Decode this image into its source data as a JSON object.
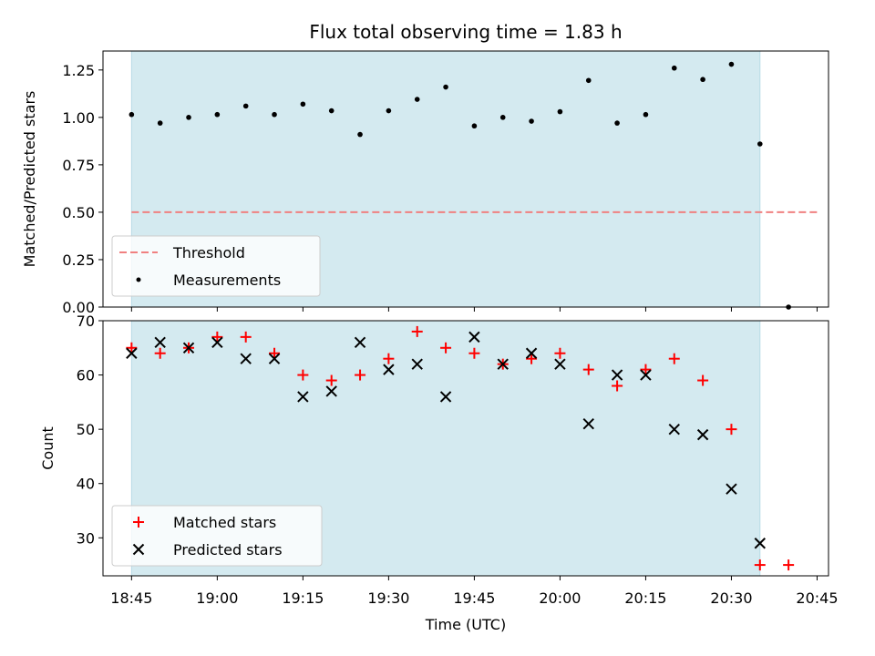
{
  "title": "Flux total observing time = 1.83 h",
  "colors": {
    "span": "#d4eaf0",
    "span_edge": "#b8dbe6",
    "threshold": "#f08080",
    "measurement": "#000000",
    "matched": "#ff0000",
    "predicted": "#000000"
  },
  "chart_data": [
    {
      "type": "scatter",
      "ylabel": "Matched/Predicted stars",
      "ylim": [
        0,
        1.35
      ],
      "xlim": [
        "18:40",
        "20:47"
      ],
      "yticks": [
        0,
        0.25,
        0.5,
        0.75,
        1.0,
        1.25
      ],
      "ytick_labels": [
        "0.00",
        "0.25",
        "0.50",
        "0.75",
        "1.00",
        "1.25"
      ],
      "shaded_span": [
        "18:45",
        "20:35"
      ],
      "threshold": {
        "name": "Threshold",
        "value": 0.5,
        "x_range": [
          "18:45",
          "20:45"
        ],
        "style": "dashed"
      },
      "series": [
        {
          "name": "Measurements",
          "marker": "dot",
          "x": [
            "18:45",
            "18:50",
            "18:55",
            "19:00",
            "19:05",
            "19:10",
            "19:15",
            "19:20",
            "19:25",
            "19:30",
            "19:35",
            "19:40",
            "19:45",
            "19:50",
            "19:55",
            "20:00",
            "20:05",
            "20:10",
            "20:15",
            "20:20",
            "20:25",
            "20:30",
            "20:35",
            "20:40"
          ],
          "y": [
            1.015,
            0.97,
            1.0,
            1.015,
            1.06,
            1.015,
            1.07,
            1.035,
            0.91,
            1.035,
            1.095,
            1.16,
            0.955,
            1.0,
            0.98,
            1.03,
            1.195,
            0.97,
            1.015,
            1.26,
            1.2,
            1.28,
            0.86,
            0.0
          ]
        }
      ],
      "legend": {
        "position": "lower-left",
        "entries": [
          "Threshold",
          "Measurements"
        ]
      },
      "grid": false
    },
    {
      "type": "scatter",
      "ylabel": "Count",
      "xlabel": "Time (UTC)",
      "ylim": [
        23,
        70
      ],
      "xlim": [
        "18:40",
        "20:47"
      ],
      "yticks": [
        30,
        40,
        50,
        60,
        70
      ],
      "ytick_labels": [
        "30",
        "40",
        "50",
        "60",
        "70"
      ],
      "xticks": [
        "18:45",
        "19:00",
        "19:15",
        "19:30",
        "19:45",
        "20:00",
        "20:15",
        "20:30",
        "20:45"
      ],
      "shaded_span": [
        "18:45",
        "20:35"
      ],
      "series": [
        {
          "name": "Matched stars",
          "marker": "plus",
          "x": [
            "18:45",
            "18:50",
            "18:55",
            "19:00",
            "19:05",
            "19:10",
            "19:15",
            "19:20",
            "19:25",
            "19:30",
            "19:35",
            "19:40",
            "19:45",
            "19:50",
            "19:55",
            "20:00",
            "20:05",
            "20:10",
            "20:15",
            "20:20",
            "20:25",
            "20:30",
            "20:35",
            "20:40"
          ],
          "y": [
            65,
            64,
            65,
            67,
            67,
            64,
            60,
            59,
            60,
            63,
            68,
            65,
            64,
            62,
            63,
            64,
            61,
            58,
            61,
            63,
            59,
            50,
            25,
            25
          ]
        },
        {
          "name": "Predicted stars",
          "marker": "x",
          "x": [
            "18:45",
            "18:50",
            "18:55",
            "19:00",
            "19:05",
            "19:10",
            "19:15",
            "19:20",
            "19:25",
            "19:30",
            "19:35",
            "19:40",
            "19:45",
            "19:50",
            "19:55",
            "20:00",
            "20:05",
            "20:10",
            "20:15",
            "20:20",
            "20:25",
            "20:30",
            "20:35"
          ],
          "y": [
            64,
            66,
            65,
            66,
            63,
            63,
            56,
            57,
            66,
            61,
            62,
            56,
            67,
            62,
            64,
            62,
            51,
            60,
            60,
            50,
            49,
            39,
            29
          ]
        }
      ],
      "legend": {
        "position": "lower-left",
        "entries": [
          "Matched stars",
          "Predicted stars"
        ]
      },
      "grid": false
    }
  ]
}
